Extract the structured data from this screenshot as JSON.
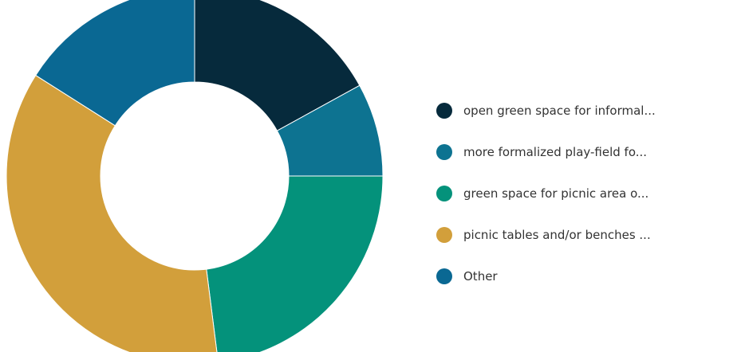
{
  "chart_data": {
    "type": "pie",
    "donut": true,
    "legend_position": "right",
    "title": "",
    "categories": [
      "open green space for informal...",
      "more formalized play-field fo...",
      "green space for picnic area o...",
      "picnic tables and/or benches ...",
      "Other"
    ],
    "values": [
      17,
      8,
      23,
      36,
      16
    ],
    "colors": [
      "#062a3c",
      "#0d7391",
      "#04927b",
      "#d29f3b",
      "#0a6893"
    ]
  }
}
